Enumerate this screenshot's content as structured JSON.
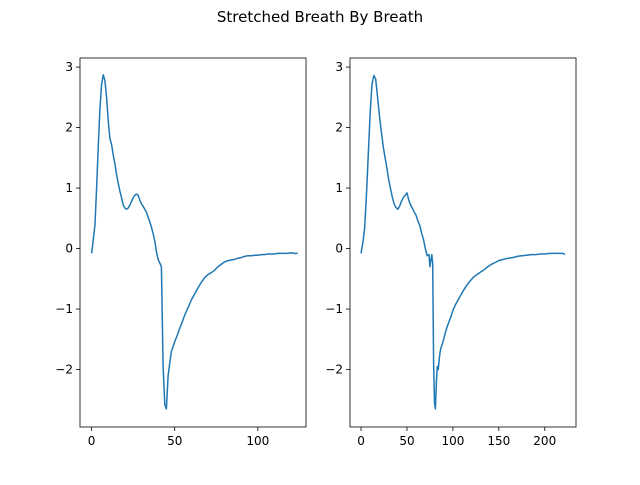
{
  "figure": {
    "title": "Stretched Breath By Breath"
  },
  "colors": {
    "series": "#1f77b4",
    "axes": "#000000",
    "background": "#ffffff"
  },
  "chart_data": [
    {
      "type": "line",
      "xlim": [
        -7,
        129
      ],
      "ylim": [
        -2.95,
        3.15
      ],
      "xticks": [
        0,
        50,
        100
      ],
      "yticks": [
        -2,
        -1,
        0,
        1,
        2,
        3
      ],
      "xtick_labels": [
        "0",
        "50",
        "100"
      ],
      "ytick_labels": [
        "−2",
        "−1",
        "0",
        "1",
        "2",
        "3"
      ],
      "grid": false,
      "series": [
        {
          "x": [
            0,
            1,
            2,
            3,
            4,
            5,
            6,
            7,
            8,
            9,
            10,
            11,
            12,
            13,
            14,
            15,
            16,
            17,
            18,
            19,
            20,
            21,
            22,
            23,
            24,
            25,
            26,
            27,
            28,
            29,
            30,
            31,
            32,
            33,
            34,
            35,
            36,
            37,
            38,
            39,
            40,
            41,
            42,
            43,
            44,
            45,
            46,
            47,
            48,
            49,
            50,
            51,
            52,
            53,
            54,
            55,
            56,
            58,
            60,
            62,
            64,
            66,
            68,
            70,
            72,
            74,
            76,
            78,
            80,
            82,
            84,
            86,
            88,
            90,
            92,
            94,
            96,
            98,
            100,
            102,
            104,
            106,
            108,
            110,
            112,
            114,
            116,
            118,
            120,
            122,
            124
          ],
          "y": [
            -0.08,
            0.15,
            0.4,
            1.0,
            1.7,
            2.3,
            2.72,
            2.87,
            2.78,
            2.5,
            2.1,
            1.82,
            1.72,
            1.55,
            1.4,
            1.22,
            1.08,
            0.95,
            0.84,
            0.72,
            0.67,
            0.65,
            0.67,
            0.72,
            0.78,
            0.84,
            0.88,
            0.9,
            0.88,
            0.8,
            0.74,
            0.7,
            0.65,
            0.6,
            0.52,
            0.44,
            0.35,
            0.25,
            0.12,
            -0.05,
            -0.18,
            -0.24,
            -0.3,
            -1.95,
            -2.58,
            -2.65,
            -2.1,
            -1.9,
            -1.7,
            -1.62,
            -1.54,
            -1.47,
            -1.4,
            -1.32,
            -1.25,
            -1.18,
            -1.1,
            -0.98,
            -0.85,
            -0.75,
            -0.65,
            -0.56,
            -0.48,
            -0.43,
            -0.4,
            -0.36,
            -0.3,
            -0.26,
            -0.22,
            -0.2,
            -0.19,
            -0.18,
            -0.16,
            -0.15,
            -0.13,
            -0.12,
            -0.12,
            -0.11,
            -0.11,
            -0.1,
            -0.1,
            -0.09,
            -0.09,
            -0.09,
            -0.08,
            -0.08,
            -0.08,
            -0.08,
            -0.07,
            -0.08,
            -0.08
          ]
        }
      ]
    },
    {
      "type": "line",
      "xlim": [
        -12,
        234
      ],
      "ylim": [
        -2.95,
        3.15
      ],
      "xticks": [
        0,
        50,
        100,
        150,
        200
      ],
      "yticks": [
        -2,
        -1,
        0,
        1,
        2,
        3
      ],
      "xtick_labels": [
        "0",
        "50",
        "100",
        "150",
        "200"
      ],
      "ytick_labels": [
        "−2",
        "−1",
        "0",
        "1",
        "2",
        "3"
      ],
      "grid": false,
      "series": [
        {
          "x": [
            0,
            2,
            4,
            6,
            8,
            10,
            12,
            14,
            16,
            18,
            20,
            22,
            24,
            26,
            28,
            30,
            32,
            34,
            36,
            38,
            40,
            42,
            44,
            46,
            48,
            50,
            52,
            54,
            56,
            58,
            60,
            62,
            64,
            66,
            68,
            70,
            72,
            74,
            75,
            76,
            77,
            78,
            79,
            80,
            81,
            82,
            83,
            84,
            85,
            86,
            87,
            88,
            90,
            92,
            94,
            96,
            98,
            100,
            103,
            106,
            110,
            114,
            118,
            122,
            126,
            130,
            134,
            138,
            142,
            146,
            150,
            155,
            160,
            165,
            170,
            175,
            180,
            185,
            190,
            195,
            200,
            205,
            210,
            215,
            220,
            222
          ],
          "y": [
            -0.08,
            0.1,
            0.35,
            0.9,
            1.6,
            2.25,
            2.72,
            2.86,
            2.8,
            2.5,
            2.2,
            1.95,
            1.7,
            1.52,
            1.35,
            1.15,
            1.0,
            0.85,
            0.74,
            0.68,
            0.65,
            0.7,
            0.78,
            0.84,
            0.88,
            0.92,
            0.8,
            0.72,
            0.66,
            0.6,
            0.55,
            0.45,
            0.38,
            0.25,
            0.15,
            0.0,
            -0.12,
            -0.1,
            -0.3,
            -0.2,
            -0.1,
            -0.25,
            -1.9,
            -2.55,
            -2.65,
            -2.2,
            -1.95,
            -2.0,
            -1.85,
            -1.72,
            -1.64,
            -1.6,
            -1.5,
            -1.38,
            -1.28,
            -1.2,
            -1.12,
            -1.02,
            -0.92,
            -0.84,
            -0.73,
            -0.63,
            -0.55,
            -0.48,
            -0.43,
            -0.39,
            -0.35,
            -0.3,
            -0.26,
            -0.23,
            -0.2,
            -0.18,
            -0.16,
            -0.15,
            -0.13,
            -0.12,
            -0.11,
            -0.1,
            -0.1,
            -0.09,
            -0.09,
            -0.08,
            -0.08,
            -0.08,
            -0.08,
            -0.1
          ]
        }
      ]
    }
  ]
}
